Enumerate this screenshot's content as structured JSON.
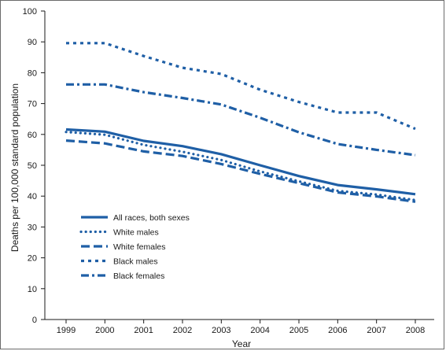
{
  "chart_data": {
    "type": "line",
    "title": "",
    "xlabel": "Year",
    "ylabel": "Deaths per 100,000 standard population",
    "x": [
      "1999",
      "2000",
      "2001",
      "2002",
      "2003",
      "2004",
      "2005",
      "2006",
      "2007",
      "2008"
    ],
    "ylim": [
      0,
      100
    ],
    "yticks": [
      0,
      10,
      20,
      30,
      40,
      50,
      60,
      70,
      80,
      90,
      100
    ],
    "grid": false,
    "legend_position": "lower-left",
    "line_color": "#1f5fa6",
    "series": [
      {
        "name": "All races, both sexes",
        "style": "solid",
        "values": [
          61.6,
          60.9,
          57.9,
          56.2,
          53.6,
          50.0,
          46.5,
          43.6,
          42.2,
          40.6
        ]
      },
      {
        "name": "White males",
        "style": "dotted",
        "values": [
          60.8,
          59.9,
          56.6,
          54.4,
          51.7,
          48.0,
          44.8,
          41.7,
          40.5,
          38.7
        ]
      },
      {
        "name": "White females",
        "style": "dashed",
        "values": [
          58.0,
          57.1,
          54.5,
          53.0,
          50.4,
          47.2,
          44.2,
          41.2,
          39.9,
          38.2
        ]
      },
      {
        "name": "Black males",
        "style": "short-dash",
        "values": [
          89.6,
          89.6,
          85.4,
          81.6,
          79.6,
          74.5,
          70.5,
          67.1,
          67.1,
          61.8
        ]
      },
      {
        "name": "Black females",
        "style": "dash-dot",
        "values": [
          76.2,
          76.2,
          73.7,
          71.8,
          69.7,
          65.4,
          60.7,
          56.9,
          55.0,
          53.3
        ]
      }
    ]
  }
}
